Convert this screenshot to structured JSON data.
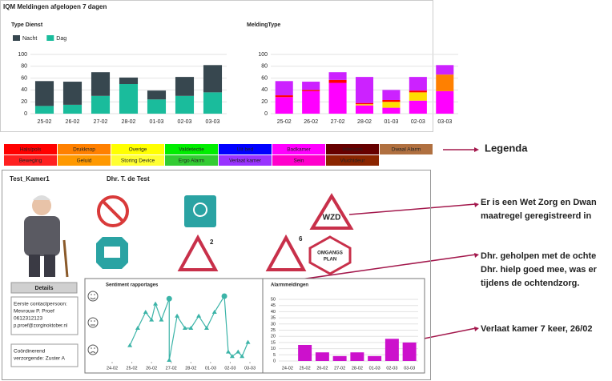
{
  "header": {
    "title": "IQM Meldingen afgelopen 7 dagen"
  },
  "chart_data": [
    {
      "type": "bar",
      "stacked": true,
      "title": "Type Dienst",
      "categories": [
        "25-02",
        "26-02",
        "27-02",
        "28-02",
        "01-03",
        "02-03",
        "03-03"
      ],
      "series": [
        {
          "name": "Nacht",
          "color": "#37474f",
          "values": [
            42,
            39,
            40,
            11,
            15,
            32,
            46
          ]
        },
        {
          "name": "Dag",
          "color": "#1abc9c",
          "values": [
            13,
            15,
            30,
            50,
            24,
            30,
            36
          ]
        }
      ],
      "ylim": [
        0,
        100
      ],
      "yticks": [
        0,
        20,
        40,
        60,
        80,
        100
      ],
      "grid": true,
      "legend": "top-left"
    },
    {
      "type": "bar",
      "stacked": true,
      "title": "MeldingType",
      "categories": [
        "25-02",
        "26-02",
        "27-02",
        "28-02",
        "01-03",
        "02-03",
        "03-03"
      ],
      "series": [
        {
          "name": "Verlaat kamer",
          "color": "#cc22ff",
          "values": [
            24,
            14,
            13,
            44,
            17,
            23,
            16
          ]
        },
        {
          "name": "Drukknop",
          "color": "#ff8000",
          "values": [
            0,
            0,
            0,
            0,
            0,
            0,
            28
          ]
        },
        {
          "name": "Hals/pols",
          "color": "#ff0000",
          "values": [
            3,
            2,
            5,
            2,
            3,
            3,
            0
          ]
        },
        {
          "name": "Overige",
          "color": "#ffdd00",
          "values": [
            0,
            0,
            0,
            2,
            10,
            14,
            0
          ]
        },
        {
          "name": "Badkamer",
          "color": "#ff00ff",
          "values": [
            28,
            38,
            52,
            14,
            10,
            22,
            38
          ]
        }
      ],
      "ylim": [
        0,
        100
      ],
      "yticks": [
        0,
        20,
        40,
        60,
        80,
        100
      ],
      "grid": true
    },
    {
      "type": "line",
      "title": "Sentiment rapportages",
      "x": [
        0.9,
        1.3,
        1.7,
        2.0,
        2.2,
        2.5,
        2.9,
        2.9,
        3.3,
        3.7,
        4.0,
        4.4,
        4.8,
        5.2,
        5.7,
        5.9,
        6.1,
        6.4,
        6.6,
        6.9
      ],
      "values": [
        2.3,
        5.0,
        7.5,
        6.3,
        8.8,
        6.3,
        9.6,
        0,
        6.9,
        5.0,
        5.0,
        6.9,
        5.0,
        7.5,
        10,
        1.3,
        0.6,
        1.3,
        0.6,
        2.8
      ],
      "xlim": [
        0,
        7
      ],
      "xticks": [
        {
          "value": 0,
          "label": "24-02"
        },
        {
          "value": 1,
          "label": "25-02"
        },
        {
          "value": 2,
          "label": "26-02"
        },
        {
          "value": 3,
          "label": "27-02"
        },
        {
          "value": 4,
          "label": "28-02"
        },
        {
          "value": 5,
          "label": "01-03"
        },
        {
          "value": 6,
          "label": "02-03"
        },
        {
          "value": 7,
          "label": "03-03"
        }
      ],
      "ylim": [
        0,
        10
      ],
      "color": "#3cb4a8",
      "highlight": [
        6,
        14
      ]
    },
    {
      "type": "bar",
      "title": "Alarmmeldingen",
      "categories": [
        "24-02",
        "25-02",
        "26-02",
        "27-02",
        "28-02",
        "01-03",
        "02-03",
        "03-03"
      ],
      "values": [
        null,
        13,
        7,
        4,
        7,
        4,
        18,
        15
      ],
      "color": "#cc11cc",
      "ylim": [
        0,
        50
      ],
      "yticks": [
        0,
        5,
        10,
        15,
        20,
        25,
        30,
        35,
        40,
        45,
        50
      ],
      "grid": true
    }
  ],
  "legenda": {
    "label": "Legenda",
    "items": [
      {
        "name": "Hals/pols",
        "color": "#ff0000"
      },
      {
        "name": "Drukknop",
        "color": "#ff8000"
      },
      {
        "name": "Overige",
        "color": "#ffff00"
      },
      {
        "name": "Valdetectie",
        "color": "#00ee00"
      },
      {
        "name": "Uit bed",
        "color": "#0000ff"
      },
      {
        "name": "Badkamer",
        "color": "#ff00ff"
      },
      {
        "name": "Intercom",
        "color": "#660000"
      },
      {
        "name": "Dwaal Alarm",
        "color": "#b07040"
      },
      {
        "name": "Beweging",
        "color": "#ff2020"
      },
      {
        "name": "Geluid",
        "color": "#ff9900"
      },
      {
        "name": "Storing Device",
        "color": "#ffff33"
      },
      {
        "name": "Ergo Alarm",
        "color": "#33cc33"
      },
      {
        "name": "Verlaat kamer",
        "color": "#9933ff"
      },
      {
        "name": "Sein",
        "color": "#ff00cc"
      },
      {
        "name": "Vluchtdeur",
        "color": "#8b2500"
      }
    ]
  },
  "room": {
    "name": "Test_Kamer1",
    "client": "Dhr. T. de Test",
    "details": "Details",
    "contact": [
      "Eerste contactpersoon:",
      "Mevrouw P. Proef",
      "0612312123",
      "p.proef@zorginoktober.nl"
    ],
    "coordinator": [
      "Coördinerend",
      "verzorgende: Zuster A"
    ]
  },
  "icons": {
    "wzd": "WZD",
    "count_a": "2",
    "count_b": "6",
    "plan": [
      "OMGANGS",
      "PLAN"
    ]
  },
  "annotations": [
    [
      "Er is een Wet Zorg en Dwan",
      "maatregel geregistreerd in"
    ],
    [
      "Dhr. geholpen met de ochte",
      "Dhr. hielp goed mee, was er",
      "tijdens de ochtendzorg."
    ],
    [
      "Verlaat kamer 7 keer, 26/02"
    ]
  ]
}
